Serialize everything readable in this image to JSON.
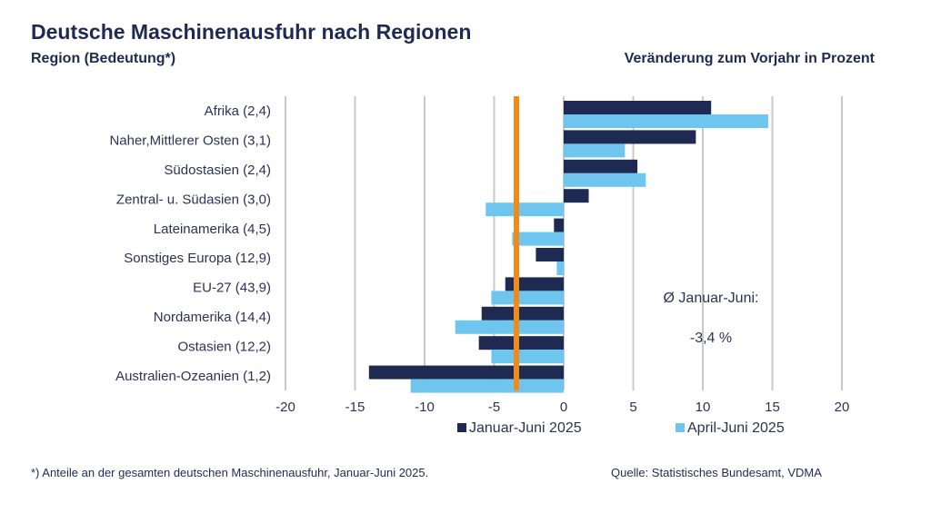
{
  "header": {
    "title": "Deutsche Maschinenausfuhr nach Regionen",
    "subtitle_left": "Region (Bedeutung*)",
    "subtitle_right": "Veränderung zum Vorjahr in Prozent"
  },
  "footer": {
    "footnote": "*) Anteile an der gesamten deutschen Maschinenausfuhr, Januar-Juni 2025.",
    "source": "Quelle: Statistisches Bundesamt, VDMA"
  },
  "chart_data": {
    "type": "bar",
    "orientation": "horizontal",
    "title": "Deutsche Maschinenausfuhr nach Regionen",
    "ylabel": "Region (Bedeutung*)",
    "xlabel": "Veränderung zum Vorjahr in Prozent",
    "categories": [
      "Afrika (2,4)",
      "Naher,Mittlerer Osten (3,1)",
      "Südostasien (2,4)",
      "Zentral- u. Südasien (3,0)",
      "Lateinamerika (4,5)",
      "Sonstiges Europa (12,9)",
      "EU-27 (43,9)",
      "Nordamerika (14,4)",
      "Ostasien (12,2)",
      "Australien-Ozeanien (1,2)"
    ],
    "series": [
      {
        "name": "Januar-Juni 2025",
        "color": "#1f2a52",
        "values": [
          10.6,
          9.5,
          5.3,
          1.8,
          -0.7,
          -2.0,
          -4.2,
          -5.9,
          -6.1,
          -14.0
        ]
      },
      {
        "name": "April-Juni 2025",
        "color": "#6ec6ee",
        "values": [
          14.7,
          4.4,
          5.9,
          -5.6,
          -3.7,
          -0.5,
          -5.2,
          -7.8,
          -5.2,
          -11.0
        ]
      }
    ],
    "xlim": [
      -20,
      20
    ],
    "xticks": [
      -20,
      -15,
      -10,
      -5,
      0,
      5,
      10,
      15,
      20
    ],
    "xtick_labels": [
      "-20",
      "-15",
      "-10",
      "-5",
      "0",
      "5",
      "10",
      "15",
      "20"
    ],
    "grid": true,
    "reference_line": {
      "value": -3.4,
      "color": "#f28a1a"
    },
    "annotation": {
      "line1": "Ø Januar-Juni:",
      "line2": "-3,4 %"
    },
    "legend": {
      "placement": "bottom",
      "entries": [
        "Januar-Juni 2025",
        "April-Juni 2025"
      ]
    }
  }
}
